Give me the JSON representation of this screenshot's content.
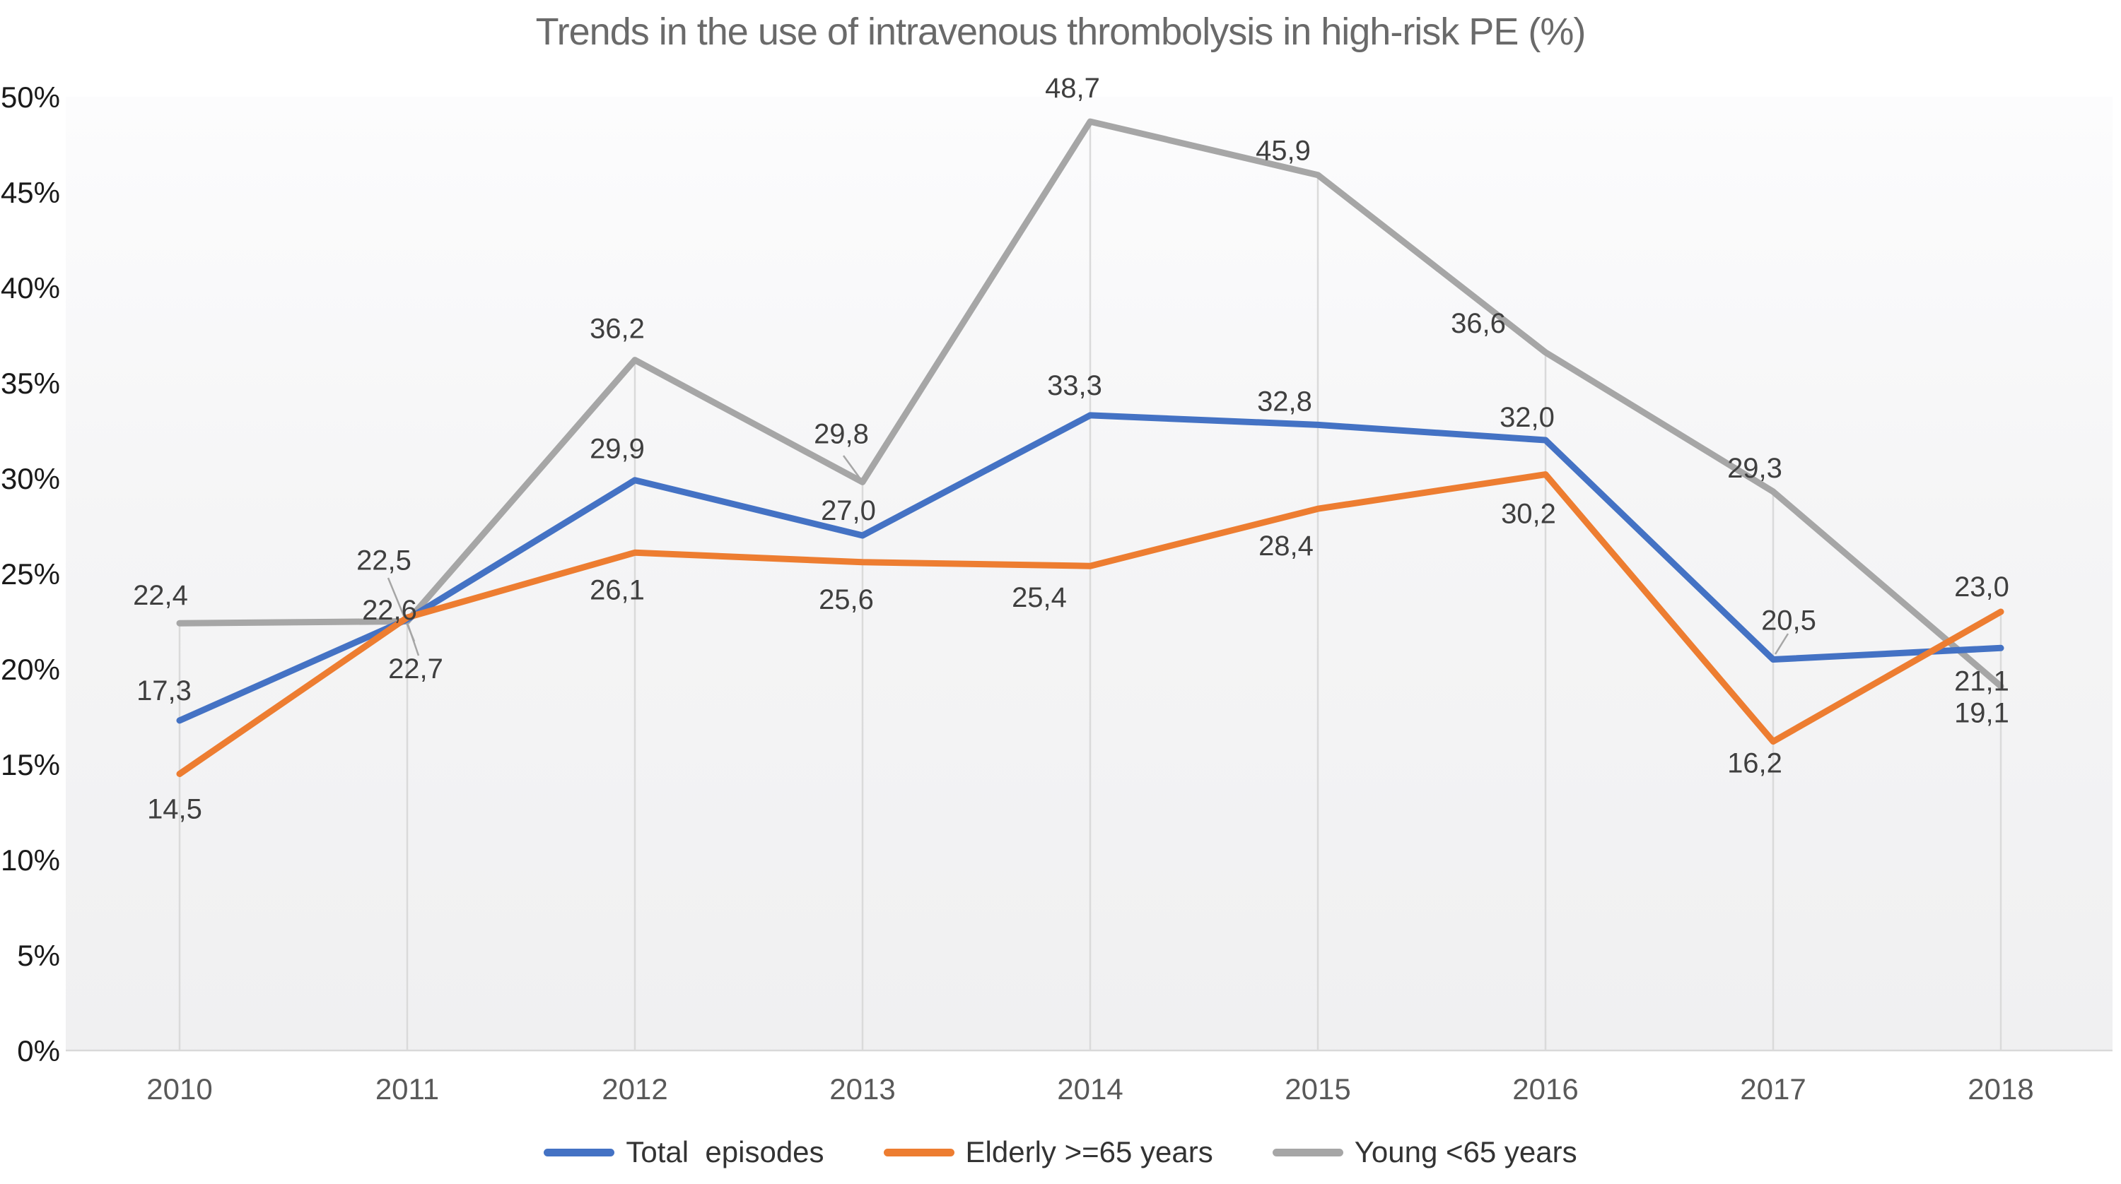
{
  "chart_data": {
    "type": "line",
    "title": "Trends in the use of intravenous thrombolysis in high-risk PE (%)",
    "categories": [
      "2010",
      "2011",
      "2012",
      "2013",
      "2014",
      "2015",
      "2016",
      "2017",
      "2018"
    ],
    "y_axis": {
      "min": 0,
      "max": 50,
      "tick_step": 5,
      "tick_labels": [
        "0%",
        "5%",
        "10%",
        "15%",
        "20%",
        "25%",
        "30%",
        "35%",
        "40%",
        "45%",
        "50%"
      ]
    },
    "series": [
      {
        "name": "Total  episodes",
        "color": "#4472C4",
        "values": [
          17.3,
          22.6,
          29.9,
          27.0,
          33.3,
          32.8,
          32.0,
          20.5,
          21.1
        ],
        "data_labels": [
          "17,3",
          "22,6",
          "29,9",
          "27,0",
          "33,3",
          "32,8",
          "32,0",
          "20,5",
          "21,1"
        ]
      },
      {
        "name": "Elderly >=65 years",
        "color": "#ED7D31",
        "values": [
          14.5,
          22.7,
          26.1,
          25.6,
          25.4,
          28.4,
          30.2,
          16.2,
          23.0
        ],
        "data_labels": [
          "14,5",
          "22,7",
          "26,1",
          "25,6",
          "25,4",
          "28,4",
          "30,2",
          "16,2",
          "23,0"
        ]
      },
      {
        "name": "Young <65 years",
        "color": "#A6A6A6",
        "values": [
          22.4,
          22.5,
          36.2,
          29.8,
          48.7,
          45.9,
          36.6,
          29.3,
          19.1
        ],
        "data_labels": [
          "22,4",
          "22,5",
          "36,2",
          "29,8",
          "48,7",
          "45,9",
          "36,6",
          "29,3",
          "19,1"
        ]
      }
    ],
    "legend_position": "bottom",
    "gridlines": "vertical drop lines from top series point to category axis, no horizontal gridlines",
    "colors": {
      "axis_line": "#D9D9D9",
      "drop_line": "#DADADA",
      "leader_line": "#A6A6A6",
      "data_label": "#3F3F3F",
      "x_tick_label": "#595959",
      "y_tick_label": "#1A1A1A",
      "title": "#6A6A6A",
      "plot_fill_top": "#FCFCFD",
      "plot_fill_bottom": "#F0F0F1"
    }
  }
}
